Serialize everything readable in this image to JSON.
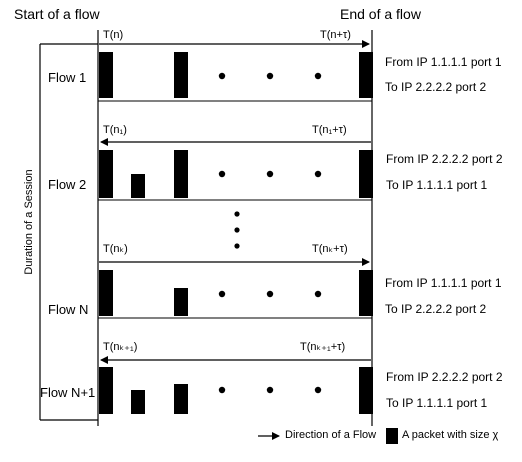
{
  "header": {
    "start_label": "Start of a flow",
    "end_label": "End of a flow"
  },
  "session": {
    "label": "Duration of a Session"
  },
  "flows": [
    {
      "label": "Flow 1",
      "start_time": "T(n)",
      "end_time": "T(n+τ)",
      "from": "From IP 1.1.1.1 port 1",
      "to": "To IP 2.2.2.2 port 2"
    },
    {
      "label": "Flow 2",
      "start_time": "T(n₁)",
      "end_time": "T(n₁+τ)",
      "from": "From IP 2.2.2.2 port 2",
      "to": "To IP 1.1.1.1 port 1"
    },
    {
      "label": "Flow N",
      "start_time": "T(nₖ)",
      "end_time": "T(nₖ+τ)",
      "from": "From IP 1.1.1.1 port 1",
      "to": "To IP 2.2.2.2 port 2"
    },
    {
      "label": "Flow N+1",
      "start_time": "T(nₖ₊₁)",
      "end_time": "T(nₖ₊₁+τ)",
      "from": "From IP 2.2.2.2 port 2",
      "to": "To IP 1.1.1.1 port 1"
    }
  ],
  "legend": {
    "direction_label": "Direction of a Flow",
    "packet_label": "A packet with size χ"
  }
}
